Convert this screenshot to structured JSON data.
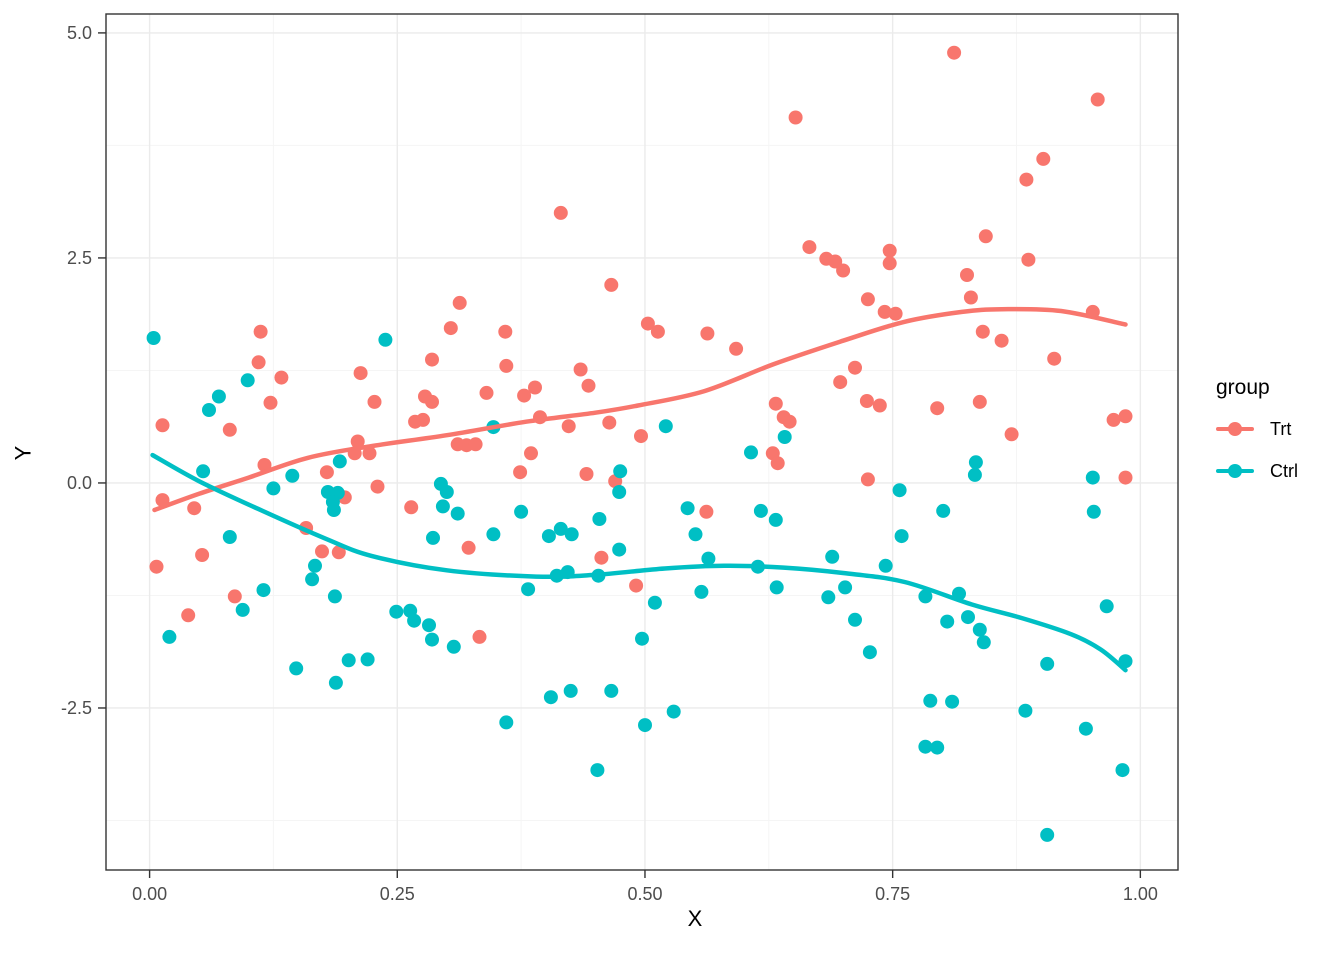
{
  "chart_data": {
    "type": "scatter",
    "title": "",
    "xlabel": "X",
    "ylabel": "Y",
    "xlim": [
      -0.044,
      1.038
    ],
    "ylim": [
      -4.3,
      5.21
    ],
    "grid": true,
    "x_ticks": {
      "values": [
        0,
        0.25,
        0.5,
        0.75,
        1
      ],
      "labels": [
        "0.00",
        "0.25",
        "0.50",
        "0.75",
        "1.00"
      ],
      "minor": [
        0.125,
        0.375,
        0.625,
        0.875
      ]
    },
    "y_ticks": {
      "values": [
        -2.5,
        0,
        2.5,
        5
      ],
      "labels": [
        "-2.5",
        "0.0",
        "2.5",
        "5.0"
      ],
      "minor": [
        -3.75,
        -1.25,
        1.25,
        3.75
      ]
    },
    "legend": {
      "title": "group",
      "position": "right",
      "entries": [
        {
          "label": "Trt",
          "color": "#F8766D"
        },
        {
          "label": "Ctrl",
          "color": "#00BFC4"
        }
      ]
    },
    "series": [
      {
        "name": "Trt",
        "color": "#F8766D",
        "mark": "points+smooth",
        "points": [
          [
            0.415,
            3.0
          ],
          [
            0.466,
            2.2
          ],
          [
            0.652,
            4.06
          ],
          [
            0.666,
            2.62
          ],
          [
            0.683,
            2.49
          ],
          [
            0.692,
            2.46
          ],
          [
            0.7,
            2.36
          ],
          [
            0.747,
            2.58
          ],
          [
            0.747,
            2.44
          ],
          [
            0.812,
            4.78
          ],
          [
            0.957,
            4.26
          ],
          [
            0.902,
            3.6
          ],
          [
            0.885,
            3.37
          ],
          [
            0.844,
            2.74
          ],
          [
            0.887,
            2.48
          ],
          [
            0.825,
            2.31
          ],
          [
            0.829,
            2.06
          ],
          [
            0.112,
            1.68
          ],
          [
            0.11,
            1.34
          ],
          [
            0.133,
            1.17
          ],
          [
            0.122,
            0.89
          ],
          [
            0.213,
            1.22
          ],
          [
            0.013,
            0.64
          ],
          [
            0.081,
            0.59
          ],
          [
            0.268,
            0.68
          ],
          [
            0.276,
            0.7
          ],
          [
            0.21,
            0.46
          ],
          [
            0.207,
            0.33
          ],
          [
            0.222,
            0.33
          ],
          [
            0.179,
            0.12
          ],
          [
            0.116,
            0.2
          ],
          [
            0.013,
            -0.19
          ],
          [
            0.045,
            -0.28
          ],
          [
            0.053,
            -0.8
          ],
          [
            0.007,
            -0.93
          ],
          [
            0.197,
            -0.16
          ],
          [
            0.23,
            -0.04
          ],
          [
            0.264,
            -0.27
          ],
          [
            0.158,
            -0.5
          ],
          [
            0.174,
            -0.76
          ],
          [
            0.191,
            -0.77
          ],
          [
            0.086,
            -1.26
          ],
          [
            0.039,
            -1.47
          ],
          [
            0.313,
            2.0
          ],
          [
            0.304,
            1.72
          ],
          [
            0.359,
            1.68
          ],
          [
            0.285,
            1.37
          ],
          [
            0.36,
            1.3
          ],
          [
            0.435,
            1.26
          ],
          [
            0.443,
            1.08
          ],
          [
            0.389,
            1.06
          ],
          [
            0.378,
            0.97
          ],
          [
            0.34,
            1.0
          ],
          [
            0.278,
            0.96
          ],
          [
            0.285,
            0.9
          ],
          [
            0.227,
            0.9
          ],
          [
            0.394,
            0.73
          ],
          [
            0.423,
            0.63
          ],
          [
            0.464,
            0.67
          ],
          [
            0.311,
            0.43
          ],
          [
            0.32,
            0.42
          ],
          [
            0.329,
            0.43
          ],
          [
            0.385,
            0.33
          ],
          [
            0.374,
            0.12
          ],
          [
            0.441,
            0.1
          ],
          [
            0.47,
            0.02
          ],
          [
            0.456,
            -0.83
          ],
          [
            0.322,
            -0.72
          ],
          [
            0.333,
            -1.71
          ],
          [
            0.503,
            1.77
          ],
          [
            0.513,
            1.68
          ],
          [
            0.563,
            1.66
          ],
          [
            0.592,
            1.49
          ],
          [
            0.725,
            2.04
          ],
          [
            0.742,
            1.9
          ],
          [
            0.753,
            1.88
          ],
          [
            0.697,
            1.12
          ],
          [
            0.712,
            1.28
          ],
          [
            0.724,
            0.91
          ],
          [
            0.737,
            0.86
          ],
          [
            0.496,
            0.52
          ],
          [
            0.632,
            0.88
          ],
          [
            0.64,
            0.73
          ],
          [
            0.646,
            0.68
          ],
          [
            0.629,
            0.33
          ],
          [
            0.634,
            0.22
          ],
          [
            0.725,
            0.04
          ],
          [
            0.562,
            -0.32
          ],
          [
            0.841,
            1.68
          ],
          [
            0.86,
            1.58
          ],
          [
            0.913,
            1.38
          ],
          [
            0.952,
            1.9
          ],
          [
            0.795,
            0.83
          ],
          [
            0.838,
            0.9
          ],
          [
            0.87,
            0.54
          ],
          [
            0.973,
            0.7
          ],
          [
            0.985,
            0.74
          ],
          [
            0.985,
            0.06
          ],
          [
            0.491,
            -1.14
          ]
        ],
        "smooth": [
          [
            0.005,
            -0.3
          ],
          [
            0.05,
            -0.12
          ],
          [
            0.1,
            0.06
          ],
          [
            0.16,
            0.28
          ],
          [
            0.224,
            0.41
          ],
          [
            0.3,
            0.53
          ],
          [
            0.38,
            0.68
          ],
          [
            0.45,
            0.78
          ],
          [
            0.493,
            0.86
          ],
          [
            0.56,
            1.02
          ],
          [
            0.63,
            1.32
          ],
          [
            0.7,
            1.58
          ],
          [
            0.762,
            1.79
          ],
          [
            0.82,
            1.9
          ],
          [
            0.86,
            1.93
          ],
          [
            0.92,
            1.91
          ],
          [
            0.985,
            1.76
          ]
        ]
      },
      {
        "name": "Ctrl",
        "color": "#00BFC4",
        "mark": "points+smooth",
        "points": [
          [
            0.004,
            1.61
          ],
          [
            0.099,
            1.14
          ],
          [
            0.07,
            0.96
          ],
          [
            0.06,
            0.81
          ],
          [
            0.238,
            1.59
          ],
          [
            0.054,
            0.13
          ],
          [
            0.144,
            0.08
          ],
          [
            0.125,
            -0.06
          ],
          [
            0.192,
            0.24
          ],
          [
            0.18,
            -0.1
          ],
          [
            0.19,
            -0.11
          ],
          [
            0.185,
            -0.21
          ],
          [
            0.186,
            -0.3
          ],
          [
            0.081,
            -0.6
          ],
          [
            0.167,
            -0.92
          ],
          [
            0.164,
            -1.07
          ],
          [
            0.347,
            0.62
          ],
          [
            0.294,
            -0.01
          ],
          [
            0.3,
            -0.1
          ],
          [
            0.296,
            -0.26
          ],
          [
            0.311,
            -0.34
          ],
          [
            0.375,
            -0.32
          ],
          [
            0.475,
            0.13
          ],
          [
            0.474,
            -0.1
          ],
          [
            0.454,
            -0.4
          ],
          [
            0.403,
            -0.59
          ],
          [
            0.415,
            -0.51
          ],
          [
            0.426,
            -0.57
          ],
          [
            0.286,
            -0.61
          ],
          [
            0.347,
            -0.57
          ],
          [
            0.474,
            -0.74
          ],
          [
            0.411,
            -1.03
          ],
          [
            0.422,
            -0.99
          ],
          [
            0.453,
            -1.03
          ],
          [
            0.521,
            0.63
          ],
          [
            0.641,
            0.51
          ],
          [
            0.607,
            0.34
          ],
          [
            0.543,
            -0.28
          ],
          [
            0.551,
            -0.57
          ],
          [
            0.617,
            -0.31
          ],
          [
            0.632,
            -0.41
          ],
          [
            0.564,
            -0.84
          ],
          [
            0.614,
            -0.93
          ],
          [
            0.689,
            -0.82
          ],
          [
            0.743,
            -0.92
          ],
          [
            0.757,
            -0.08
          ],
          [
            0.759,
            -0.59
          ],
          [
            0.834,
            0.23
          ],
          [
            0.833,
            0.09
          ],
          [
            0.952,
            0.06
          ],
          [
            0.801,
            -0.31
          ],
          [
            0.953,
            -0.32
          ],
          [
            0.115,
            -1.19
          ],
          [
            0.094,
            -1.41
          ],
          [
            0.02,
            -1.71
          ],
          [
            0.187,
            -1.26
          ],
          [
            0.148,
            -2.06
          ],
          [
            0.201,
            -1.97
          ],
          [
            0.22,
            -1.96
          ],
          [
            0.188,
            -2.22
          ],
          [
            0.382,
            -1.18
          ],
          [
            0.249,
            -1.43
          ],
          [
            0.263,
            -1.42
          ],
          [
            0.267,
            -1.53
          ],
          [
            0.282,
            -1.58
          ],
          [
            0.285,
            -1.74
          ],
          [
            0.307,
            -1.82
          ],
          [
            0.405,
            -2.38
          ],
          [
            0.425,
            -2.31
          ],
          [
            0.466,
            -2.31
          ],
          [
            0.36,
            -2.66
          ],
          [
            0.452,
            -3.19
          ],
          [
            0.557,
            -1.21
          ],
          [
            0.51,
            -1.33
          ],
          [
            0.497,
            -1.73
          ],
          [
            0.633,
            -1.16
          ],
          [
            0.702,
            -1.16
          ],
          [
            0.685,
            -1.27
          ],
          [
            0.712,
            -1.52
          ],
          [
            0.727,
            -1.88
          ],
          [
            0.529,
            -2.54
          ],
          [
            0.5,
            -2.69
          ],
          [
            0.783,
            -1.26
          ],
          [
            0.817,
            -1.23
          ],
          [
            0.805,
            -1.54
          ],
          [
            0.826,
            -1.49
          ],
          [
            0.838,
            -1.63
          ],
          [
            0.842,
            -1.77
          ],
          [
            0.966,
            -1.37
          ],
          [
            0.906,
            -2.01
          ],
          [
            0.985,
            -1.98
          ],
          [
            0.788,
            -2.42
          ],
          [
            0.81,
            -2.43
          ],
          [
            0.884,
            -2.53
          ],
          [
            0.945,
            -2.73
          ],
          [
            0.783,
            -2.93
          ],
          [
            0.795,
            -2.94
          ],
          [
            0.982,
            -3.19
          ],
          [
            0.906,
            -3.91
          ]
        ],
        "smooth": [
          [
            0.003,
            0.31
          ],
          [
            0.05,
            0.02
          ],
          [
            0.11,
            -0.29
          ],
          [
            0.178,
            -0.62
          ],
          [
            0.224,
            -0.81
          ],
          [
            0.3,
            -0.97
          ],
          [
            0.39,
            -1.04
          ],
          [
            0.45,
            -1.02
          ],
          [
            0.52,
            -0.95
          ],
          [
            0.58,
            -0.92
          ],
          [
            0.64,
            -0.94
          ],
          [
            0.7,
            -1.0
          ],
          [
            0.762,
            -1.1
          ],
          [
            0.83,
            -1.35
          ],
          [
            0.88,
            -1.5
          ],
          [
            0.93,
            -1.68
          ],
          [
            0.96,
            -1.85
          ],
          [
            0.985,
            -2.08
          ]
        ]
      }
    ]
  },
  "style": {
    "background": "#FFFFFF",
    "panel_border": "#333333",
    "grid_major": "#EBEBEB",
    "grid_minor": "#F5F5F5",
    "tick_color": "#333333",
    "tick_label_color": "#4D4D4D",
    "point_radius": 7,
    "line_width": 4.5
  }
}
